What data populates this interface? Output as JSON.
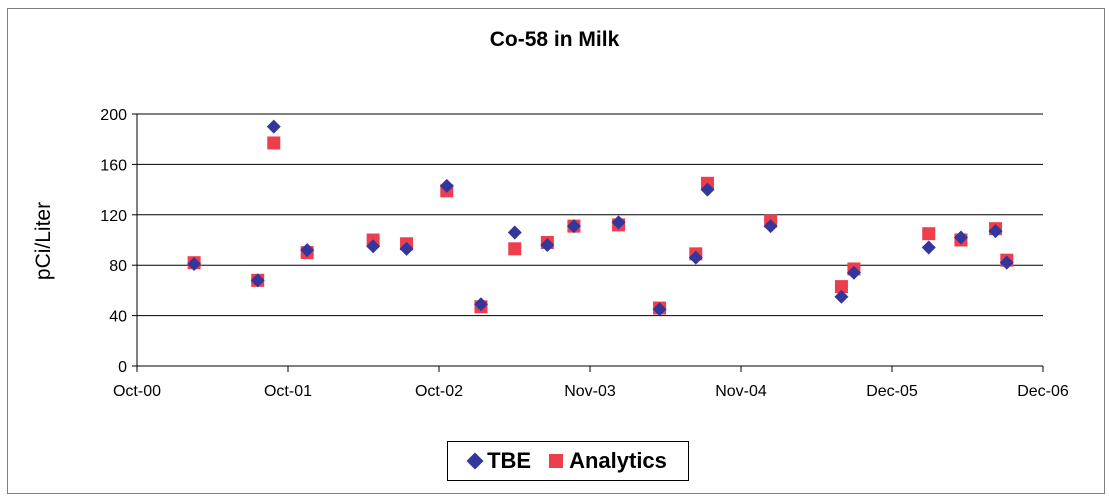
{
  "chart_data": {
    "type": "scatter",
    "title": "Co-58 in Milk",
    "xlabel": "",
    "ylabel": "pCi/Liter",
    "x_tick_labels": [
      "Oct-00",
      "Oct-01",
      "Oct-02",
      "Nov-03",
      "Nov-04",
      "Dec-05",
      "Dec-06"
    ],
    "y_ticks": [
      0,
      40,
      80,
      120,
      160,
      200
    ],
    "ylim": [
      0,
      200
    ],
    "xlim": [
      "2000-10-01",
      "2006-12-01"
    ],
    "grid": "horizontal",
    "legend_position": "bottom",
    "series": [
      {
        "name": "TBE",
        "marker": "diamond",
        "color": "#33369b",
        "points": [
          {
            "x": "2001-02-20",
            "y": 81
          },
          {
            "x": "2001-07-28",
            "y": 68
          },
          {
            "x": "2001-09-06",
            "y": 190
          },
          {
            "x": "2001-11-28",
            "y": 92
          },
          {
            "x": "2002-05-11",
            "y": 95
          },
          {
            "x": "2002-08-02",
            "y": 93
          },
          {
            "x": "2002-11-10",
            "y": 143
          },
          {
            "x": "2003-02-03",
            "y": 49
          },
          {
            "x": "2003-04-28",
            "y": 106
          },
          {
            "x": "2003-07-18",
            "y": 96
          },
          {
            "x": "2003-09-22",
            "y": 111
          },
          {
            "x": "2004-01-11",
            "y": 114
          },
          {
            "x": "2004-04-22",
            "y": 45
          },
          {
            "x": "2004-07-21",
            "y": 86
          },
          {
            "x": "2004-08-19",
            "y": 140
          },
          {
            "x": "2005-01-23",
            "y": 111
          },
          {
            "x": "2005-07-18",
            "y": 55
          },
          {
            "x": "2005-08-18",
            "y": 74
          },
          {
            "x": "2006-02-20",
            "y": 94
          },
          {
            "x": "2006-05-11",
            "y": 102
          },
          {
            "x": "2006-08-05",
            "y": 107
          },
          {
            "x": "2006-09-02",
            "y": 82
          }
        ]
      },
      {
        "name": "Analytics",
        "marker": "square",
        "color": "#ee3e4c",
        "points": [
          {
            "x": "2001-02-20",
            "y": 82
          },
          {
            "x": "2001-07-28",
            "y": 68
          },
          {
            "x": "2001-09-06",
            "y": 177
          },
          {
            "x": "2001-11-28",
            "y": 90
          },
          {
            "x": "2002-05-11",
            "y": 100
          },
          {
            "x": "2002-08-02",
            "y": 97
          },
          {
            "x": "2002-11-10",
            "y": 139
          },
          {
            "x": "2003-02-03",
            "y": 47
          },
          {
            "x": "2003-04-28",
            "y": 93
          },
          {
            "x": "2003-07-18",
            "y": 98
          },
          {
            "x": "2003-09-22",
            "y": 111
          },
          {
            "x": "2004-01-11",
            "y": 112
          },
          {
            "x": "2004-04-22",
            "y": 46
          },
          {
            "x": "2004-07-21",
            "y": 89
          },
          {
            "x": "2004-08-19",
            "y": 145
          },
          {
            "x": "2005-01-23",
            "y": 115
          },
          {
            "x": "2005-07-18",
            "y": 63
          },
          {
            "x": "2005-08-18",
            "y": 77
          },
          {
            "x": "2006-02-20",
            "y": 105
          },
          {
            "x": "2006-05-11",
            "y": 100
          },
          {
            "x": "2006-08-05",
            "y": 109
          },
          {
            "x": "2006-09-02",
            "y": 84
          }
        ]
      }
    ]
  }
}
